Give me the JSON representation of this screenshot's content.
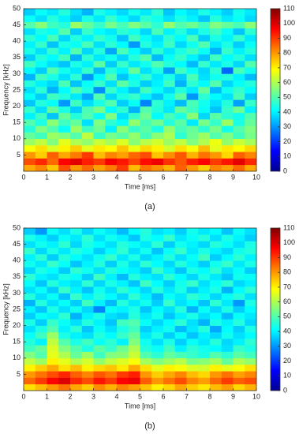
{
  "chart_data": [
    {
      "type": "heatmap",
      "caption": "(a)",
      "xlabel": "Time [ms]",
      "ylabel": "Frequency [kHz]",
      "colormap": "jet",
      "xlim": [
        0,
        10
      ],
      "xticks": [
        0,
        1,
        2,
        3,
        4,
        5,
        6,
        7,
        8,
        9,
        10
      ],
      "ylim": [
        0,
        50
      ],
      "yticks": [
        5,
        10,
        15,
        20,
        25,
        30,
        35,
        40,
        45,
        50
      ],
      "clim": [
        0,
        110
      ],
      "cticks": [
        0,
        10,
        20,
        30,
        40,
        50,
        60,
        70,
        80,
        90,
        100,
        110
      ],
      "xbins": [
        0,
        0.5,
        1,
        1.5,
        2,
        2.5,
        3,
        3.5,
        4,
        4.5,
        5,
        5.5,
        6,
        6.5,
        7,
        7.5,
        8,
        8.5,
        9,
        9.5,
        10
      ],
      "ybins": [
        0,
        2,
        4,
        6,
        8,
        10,
        12,
        14,
        16,
        18,
        20,
        22,
        24,
        26,
        28,
        30,
        32,
        34,
        36,
        38,
        40,
        42,
        44,
        46,
        48,
        50
      ],
      "values": [
        [
          78,
          82,
          75,
          88,
          80,
          85,
          79,
          83,
          90,
          76,
          84,
          81,
          77,
          86,
          80,
          74,
          82,
          79,
          85,
          78
        ],
        [
          88,
          92,
          85,
          96,
          99,
          93,
          90,
          97,
          94,
          89,
          95,
          98,
          91,
          87,
          93,
          96,
          90,
          94,
          99,
          92
        ],
        [
          80,
          74,
          86,
          78,
          83,
          90,
          76,
          82,
          79,
          85,
          88,
          75,
          81,
          87,
          77,
          84,
          80,
          73,
          86,
          82
        ],
        [
          68,
          72,
          65,
          70,
          74,
          66,
          71,
          69,
          75,
          67,
          73,
          70,
          64,
          72,
          68,
          76,
          66,
          71,
          69,
          73
        ],
        [
          58,
          62,
          55,
          66,
          60,
          57,
          63,
          59,
          65,
          56,
          61,
          64,
          58,
          62,
          55,
          60,
          67,
          57,
          63,
          59
        ],
        [
          52,
          48,
          58,
          55,
          50,
          62,
          47,
          54,
          51,
          57,
          49,
          56,
          60,
          46,
          53,
          58,
          50,
          55,
          48,
          54
        ],
        [
          45,
          55,
          50,
          42,
          58,
          48,
          53,
          40,
          56,
          47,
          51,
          44,
          57,
          49,
          52,
          46,
          54,
          43,
          50,
          55
        ],
        [
          50,
          44,
          56,
          48,
          52,
          38,
          55,
          46,
          42,
          57,
          49,
          53,
          45,
          51,
          39,
          54,
          47,
          58,
          44,
          52
        ],
        [
          40,
          48,
          35,
          52,
          45,
          50,
          42,
          55,
          38,
          47,
          53,
          41,
          49,
          44,
          56,
          37,
          51,
          46,
          43,
          50
        ],
        [
          47,
          38,
          52,
          44,
          36,
          49,
          54,
          41,
          46,
          33,
          50,
          45,
          39,
          52,
          48,
          42,
          35,
          47,
          53,
          40
        ],
        [
          35,
          45,
          42,
          30,
          48,
          38,
          44,
          50,
          36,
          42,
          28,
          46,
          40,
          34,
          49,
          43,
          38,
          45,
          31,
          47
        ],
        [
          42,
          36,
          48,
          45,
          39,
          32,
          50,
          37,
          44,
          47,
          40,
          35,
          43,
          51,
          30,
          46,
          41,
          38,
          49,
          36
        ],
        [
          38,
          46,
          33,
          41,
          50,
          44,
          29,
          47,
          40,
          35,
          48,
          42,
          37,
          45,
          39,
          52,
          34,
          43,
          47,
          41
        ],
        [
          45,
          40,
          37,
          49,
          35,
          42,
          47,
          38,
          51,
          44,
          36,
          40,
          48,
          33,
          46,
          41,
          50,
          37,
          42,
          45
        ],
        [
          33,
          48,
          44,
          38,
          46,
          30,
          41,
          50,
          35,
          42,
          47,
          39,
          44,
          36,
          49,
          38,
          43,
          45,
          40,
          34
        ],
        [
          41,
          36,
          50,
          43,
          39,
          47,
          34,
          45,
          40,
          52,
          38,
          44,
          31,
          48,
          42,
          37,
          46,
          25,
          49,
          43
        ],
        [
          48,
          42,
          38,
          35,
          44,
          40,
          51,
          36,
          47,
          39,
          43,
          50,
          45,
          41,
          34,
          47,
          39,
          44,
          37,
          50
        ],
        [
          36,
          45,
          41,
          48,
          33,
          46,
          39,
          43,
          37,
          45,
          50,
          34,
          42,
          47,
          40,
          35,
          48,
          41,
          45,
          38
        ],
        [
          44,
          38,
          47,
          40,
          50,
          37,
          45,
          32,
          49,
          41,
          36,
          46,
          39,
          44,
          48,
          42,
          33,
          47,
          40,
          45
        ],
        [
          40,
          47,
          35,
          44,
          42,
          49,
          38,
          46,
          41,
          30,
          45,
          40,
          48,
          37,
          43,
          50,
          39,
          44,
          36,
          42
        ],
        [
          46,
          41,
          49,
          37,
          45,
          40,
          47,
          43,
          35,
          48,
          42,
          38,
          46,
          41,
          49,
          36,
          44,
          40,
          47,
          39
        ],
        [
          38,
          44,
          42,
          50,
          36,
          47,
          41,
          39,
          46,
          43,
          37,
          49,
          40,
          45,
          38,
          44,
          48,
          42,
          35,
          46
        ],
        [
          50,
          56,
          48,
          45,
          58,
          52,
          47,
          54,
          49,
          55,
          51,
          46,
          57,
          50,
          53,
          48,
          55,
          52,
          49,
          56
        ],
        [
          42,
          38,
          45,
          40,
          36,
          44,
          39,
          47,
          41,
          37,
          46,
          43,
          38,
          44,
          40,
          35,
          45,
          39,
          42,
          37
        ],
        [
          36,
          42,
          39,
          45,
          38,
          33,
          44,
          40,
          37,
          43,
          39,
          46,
          35,
          41,
          38,
          44,
          40,
          36,
          43,
          39
        ]
      ]
    },
    {
      "type": "heatmap",
      "caption": "(b)",
      "xlabel": "Time [ms]",
      "ylabel": "Frequency [kHz]",
      "colormap": "jet",
      "xlim": [
        0,
        10
      ],
      "xticks": [
        0,
        1,
        2,
        3,
        4,
        5,
        6,
        7,
        8,
        9,
        10
      ],
      "ylim": [
        0,
        50
      ],
      "yticks": [
        5,
        10,
        15,
        20,
        25,
        30,
        35,
        40,
        45,
        50
      ],
      "clim": [
        0,
        110
      ],
      "cticks": [
        0,
        10,
        20,
        30,
        40,
        50,
        60,
        70,
        80,
        90,
        100,
        110
      ],
      "xbins": [
        0,
        0.5,
        1,
        1.5,
        2,
        2.5,
        3,
        3.5,
        4,
        4.5,
        5,
        5.5,
        6,
        6.5,
        7,
        7.5,
        8,
        8.5,
        9,
        9.5,
        10
      ],
      "ybins": [
        0,
        2,
        4,
        6,
        8,
        10,
        12,
        14,
        16,
        18,
        20,
        22,
        24,
        26,
        28,
        30,
        32,
        34,
        36,
        38,
        40,
        42,
        44,
        46,
        48,
        50
      ],
      "values": [
        [
          72,
          76,
          80,
          84,
          78,
          74,
          81,
          77,
          82,
          79,
          75,
          70,
          73,
          78,
          74,
          71,
          76,
          79,
          73,
          77
        ],
        [
          85,
          90,
          96,
          100,
          92,
          88,
          94,
          90,
          96,
          98,
          86,
          80,
          84,
          88,
          82,
          79,
          85,
          90,
          86,
          88
        ],
        [
          80,
          84,
          88,
          92,
          86,
          82,
          87,
          84,
          90,
          93,
          80,
          74,
          78,
          82,
          76,
          73,
          80,
          84,
          79,
          82
        ],
        [
          70,
          74,
          78,
          72,
          76,
          70,
          73,
          75,
          71,
          78,
          72,
          66,
          70,
          68,
          65,
          64,
          70,
          66,
          68,
          72
        ],
        [
          62,
          58,
          70,
          66,
          60,
          64,
          57,
          62,
          65,
          68,
          59,
          55,
          58,
          61,
          54,
          56,
          59,
          52,
          60,
          57
        ],
        [
          55,
          50,
          66,
          60,
          52,
          58,
          48,
          55,
          56,
          63,
          50,
          46,
          52,
          49,
          47,
          44,
          50,
          46,
          51,
          48
        ],
        [
          48,
          52,
          65,
          55,
          50,
          44,
          51,
          47,
          53,
          60,
          45,
          42,
          48,
          40,
          46,
          43,
          41,
          38,
          47,
          44
        ],
        [
          45,
          40,
          62,
          50,
          44,
          48,
          42,
          46,
          40,
          55,
          43,
          38,
          44,
          36,
          42,
          39,
          45,
          37,
          40,
          46
        ],
        [
          42,
          48,
          58,
          44,
          40,
          38,
          45,
          41,
          47,
          52,
          39,
          44,
          36,
          42,
          35,
          40,
          37,
          43,
          38,
          41
        ],
        [
          38,
          44,
          50,
          40,
          46,
          35,
          42,
          38,
          44,
          48,
          36,
          40,
          43,
          34,
          39,
          45,
          32,
          41,
          36,
          44
        ],
        [
          44,
          36,
          47,
          42,
          38,
          45,
          40,
          35,
          48,
          50,
          42,
          37,
          41,
          46,
          38,
          33,
          44,
          40,
          45,
          37
        ],
        [
          36,
          42,
          40,
          46,
          33,
          40,
          44,
          38,
          36,
          45,
          39,
          43,
          35,
          40,
          44,
          38,
          41,
          34,
          42,
          39
        ],
        [
          40,
          35,
          44,
          38,
          43,
          37,
          28,
          42,
          40,
          44,
          35,
          41,
          38,
          45,
          33,
          42,
          37,
          44,
          36,
          41
        ],
        [
          33,
          45,
          38,
          42,
          36,
          48,
          40,
          34,
          45,
          39,
          43,
          36,
          47,
          38,
          41,
          35,
          46,
          39,
          30,
          44
        ],
        [
          45,
          38,
          42,
          35,
          47,
          40,
          45,
          41,
          37,
          46,
          40,
          34,
          42,
          39,
          46,
          43,
          37,
          42,
          45,
          38
        ],
        [
          38,
          42,
          36,
          47,
          40,
          35,
          43,
          38,
          46,
          41,
          37,
          45,
          39,
          44,
          36,
          40,
          44,
          33,
          41,
          46
        ],
        [
          42,
          35,
          45,
          40,
          38,
          46,
          37,
          44,
          40,
          35,
          48,
          41,
          36,
          43,
          47,
          38,
          42,
          46,
          37,
          40
        ],
        [
          46,
          40,
          38,
          44,
          42,
          36,
          48,
          40,
          34,
          45,
          40,
          38,
          46,
          41,
          37,
          44,
          39,
          35,
          43,
          42
        ],
        [
          37,
          44,
          41,
          36,
          46,
          43,
          38,
          45,
          42,
          40,
          36,
          47,
          40,
          35,
          44,
          41,
          46,
          38,
          42,
          36
        ],
        [
          43,
          39,
          47,
          42,
          35,
          40,
          45,
          36,
          44,
          38,
          46,
          41,
          37,
          45,
          40,
          36,
          43,
          47,
          39,
          44
        ],
        [
          40,
          46,
          36,
          45,
          41,
          38,
          43,
          47,
          39,
          44,
          37,
          40,
          45,
          38,
          42,
          48,
          36,
          41,
          46,
          40
        ],
        [
          47,
          37,
          44,
          39,
          45,
          42,
          36,
          41,
          46,
          38,
          43,
          35,
          42,
          47,
          39,
          44,
          40,
          37,
          43,
          45
        ],
        [
          38,
          43,
          40,
          46,
          37,
          44,
          41,
          38,
          45,
          42,
          39,
          46,
          36,
          43,
          40,
          37,
          45,
          42,
          38,
          44
        ],
        [
          44,
          40,
          36,
          42,
          39,
          46,
          38,
          43,
          40,
          35,
          44,
          41,
          47,
          39,
          42,
          45,
          38,
          44,
          40,
          36
        ],
        [
          36,
          30,
          42,
          38,
          44,
          37,
          42,
          39,
          34,
          41,
          45,
          38,
          40,
          36,
          43,
          39,
          41,
          35,
          42,
          38
        ]
      ]
    }
  ]
}
